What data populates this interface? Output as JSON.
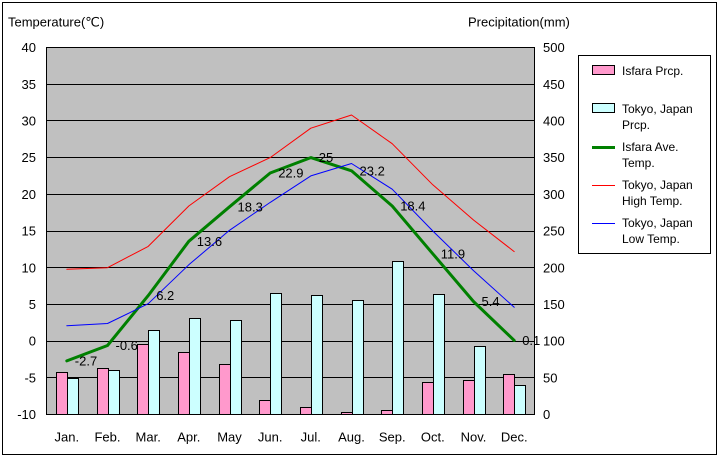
{
  "chart_data": {
    "type": "bar",
    "title": "",
    "xlabel": "",
    "ylabel": "Temperature(℃)",
    "y2label": "Precipitation(mm)",
    "categories": [
      "Jan.",
      "Feb.",
      "Mar.",
      "Apr.",
      "May",
      "Jun.",
      "Jul.",
      "Aug.",
      "Sep.",
      "Oct.",
      "Nov.",
      "Dec."
    ],
    "ylim": [
      -10,
      40
    ],
    "y2lim": [
      0,
      500
    ],
    "yticks": [
      40,
      35,
      30,
      25,
      20,
      15,
      10,
      5,
      0,
      -5,
      -10
    ],
    "y2ticks": [
      500,
      450,
      400,
      350,
      300,
      250,
      200,
      150,
      100,
      50,
      0
    ],
    "grid": true,
    "legend": "right",
    "plot_background": "#c0c0c0",
    "series": [
      {
        "name": "Isfara Prcp.",
        "type": "bar",
        "axis": "right",
        "color": "#ff99cc",
        "values": [
          57,
          63,
          95,
          84,
          68,
          19,
          10,
          3,
          5,
          44,
          47,
          55
        ]
      },
      {
        "name": "Tokyo, Japan Prcp.",
        "type": "bar",
        "axis": "right",
        "color": "#ccffff",
        "values": [
          48.6,
          60.2,
          114.5,
          130.3,
          128.0,
          164.9,
          161.5,
          155.1,
          208.5,
          163.1,
          92.5,
          39.6
        ]
      },
      {
        "name": "Isfara Ave. Temp.",
        "type": "line",
        "axis": "left",
        "color": "#008000",
        "data_labels": true,
        "values": [
          -2.7,
          -0.6,
          6.2,
          13.6,
          18.3,
          22.9,
          25,
          23.2,
          18.4,
          11.9,
          5.4,
          0.1
        ]
      },
      {
        "name": "Tokyo, Japan High Temp.",
        "type": "line",
        "axis": "left",
        "color": "#ff0000",
        "values": [
          9.8,
          10.0,
          12.9,
          18.4,
          22.4,
          25.0,
          29.0,
          30.8,
          26.9,
          21.3,
          16.5,
          12.2
        ]
      },
      {
        "name": "Tokyo, Japan Low Temp.",
        "type": "line",
        "axis": "left",
        "color": "#0000ff",
        "values": [
          2.1,
          2.4,
          5.1,
          10.4,
          15.1,
          18.9,
          22.5,
          24.2,
          20.7,
          15.0,
          9.6,
          4.6
        ]
      }
    ]
  }
}
